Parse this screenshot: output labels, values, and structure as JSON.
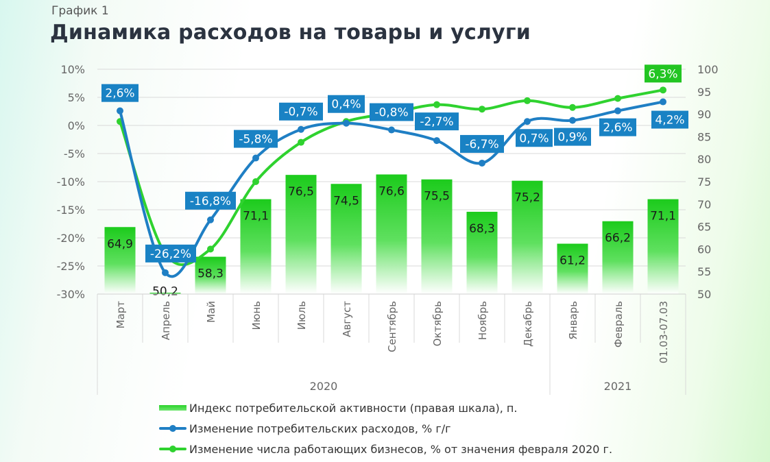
{
  "header": {
    "kicker": "График 1",
    "title": "Динамика расходов на товары и услуги"
  },
  "colors": {
    "bar": "#22cc22",
    "blue_line": "#1f7fc4",
    "green_line": "#2fd22f",
    "label_box": "#1982c4",
    "label_box_highlight": "#22c522"
  },
  "chart_data": {
    "type": "bar+line",
    "title": "Динамика расходов на товары и услуги",
    "categories": [
      "Март",
      "Апрель",
      "Май",
      "Июнь",
      "Июль",
      "Август",
      "Сентябрь",
      "Октябрь",
      "Ноябрь",
      "Декабрь",
      "Январь",
      "Февраль",
      "01.03-07.03"
    ],
    "year_groups": [
      {
        "label": "2020"
      },
      {
        "label": "2021"
      }
    ],
    "left_axis": {
      "min": -30,
      "max": 10,
      "ticks": [
        10,
        5,
        0,
        -5,
        -10,
        -15,
        -20,
        -25,
        -30
      ],
      "tick_labels": [
        "10%",
        "5%",
        "0%",
        "-5%",
        "-10%",
        "-15%",
        "-20%",
        "-25%",
        "-30%"
      ]
    },
    "right_axis": {
      "min": 50,
      "max": 100,
      "ticks": [
        100,
        95,
        90,
        85,
        80,
        75,
        70,
        65,
        60,
        55,
        50
      ],
      "tick_labels": [
        "100",
        "95",
        "90",
        "85",
        "80",
        "75",
        "70",
        "65",
        "60",
        "55",
        "50"
      ]
    },
    "grid": true,
    "series": [
      {
        "name": "Индекс потребительской активности (правая шкала), п.",
        "kind": "bar",
        "axis": "right",
        "values": [
          64.9,
          50.2,
          58.3,
          71.1,
          76.5,
          74.5,
          76.6,
          75.5,
          68.3,
          75.2,
          61.2,
          66.2,
          71.1
        ],
        "labels": [
          "64,9",
          "50,2",
          "58,3",
          "71,1",
          "76,5",
          "74,5",
          "76,6",
          "75,5",
          "68,3",
          "75,2",
          "61,2",
          "66,2",
          "71,1"
        ]
      },
      {
        "name": "Изменение потребительских расходов, % г/г",
        "kind": "line",
        "axis": "left",
        "values": [
          2.6,
          -26.2,
          -16.8,
          -5.8,
          -0.7,
          0.4,
          -0.8,
          -2.7,
          -6.7,
          0.7,
          0.9,
          2.6,
          4.2
        ],
        "labels": [
          "2,6%",
          "-26,2%",
          "-16,8%",
          "-5,8%",
          "-0,7%",
          "0,4%",
          "-0,8%",
          "-2,7%",
          "-6,7%",
          "0,7%",
          "0,9%",
          "2,6%",
          "4,2%"
        ]
      },
      {
        "name": "Изменение числа работающих бизнесов, % от значения февраля 2020 г.",
        "kind": "line",
        "axis": "left",
        "values": [
          0.7,
          -22.8,
          -22.0,
          -10.0,
          -3.0,
          0.7,
          2.2,
          3.7,
          2.9,
          4.4,
          3.2,
          4.8,
          6.3
        ],
        "labels": [
          "",
          "",
          "",
          "",
          "",
          "",
          "",
          "",
          "",
          "",
          "",
          "",
          "6,3%"
        ]
      }
    ],
    "legend_position": "bottom"
  }
}
